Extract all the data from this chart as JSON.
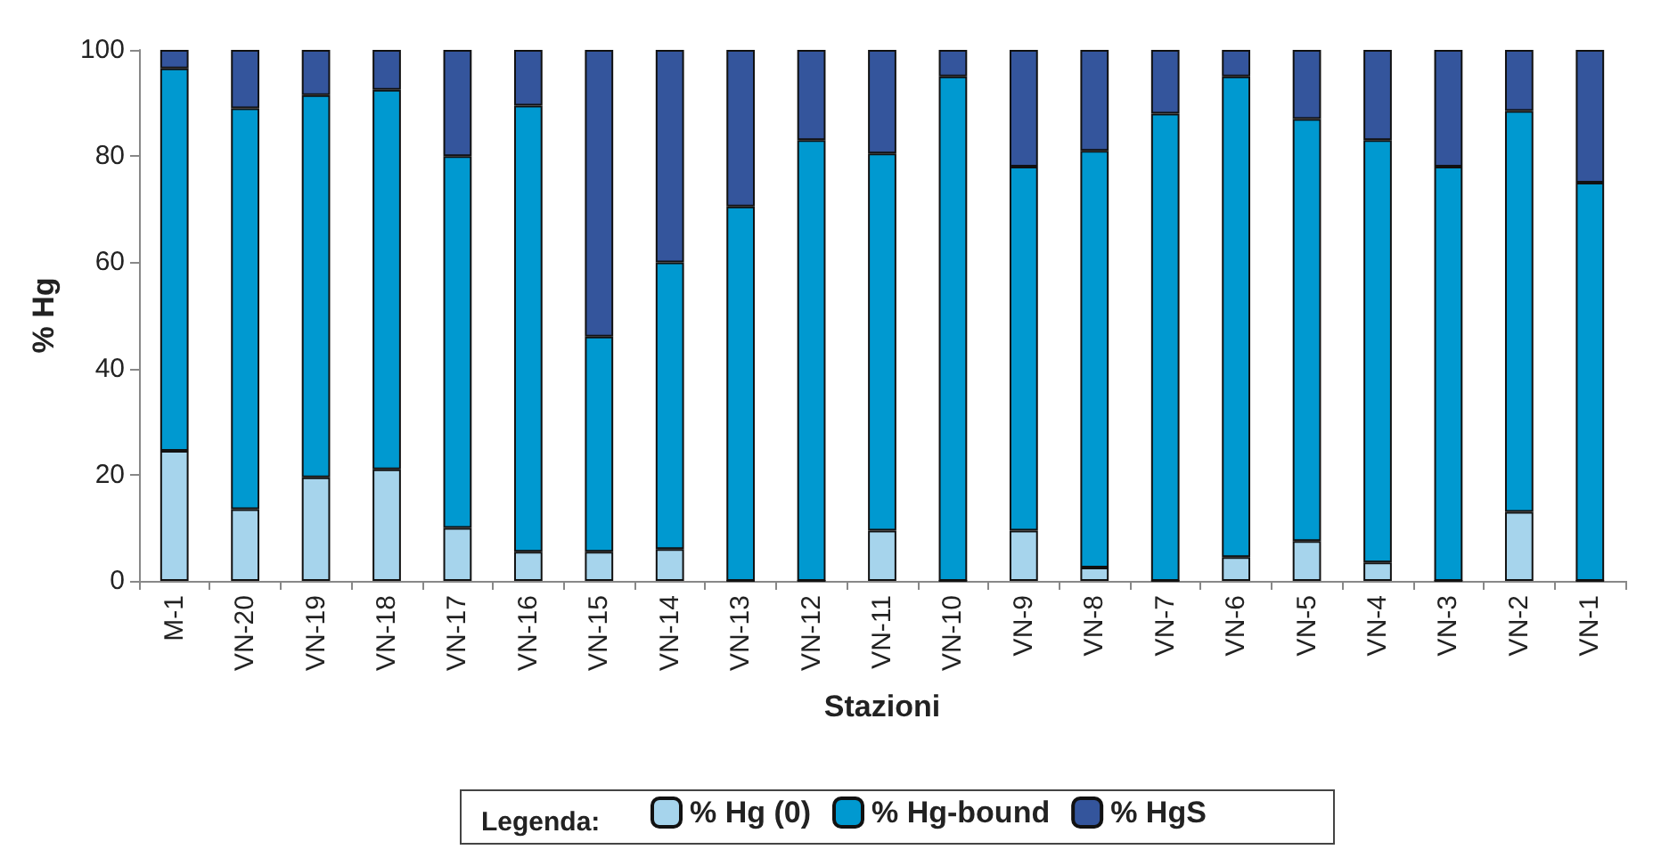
{
  "chart_data": {
    "type": "bar",
    "stacked": true,
    "xlabel": "Stazioni",
    "ylabel": "% Hg",
    "legend_title": "Legenda:",
    "legend": "bottom",
    "categories": [
      "M-1",
      "VN-20",
      "VN-19",
      "VN-18",
      "VN-17",
      "VN-16",
      "VN-15",
      "VN-14",
      "VN-13",
      "VN-12",
      "VN-11",
      "VN-10",
      "VN-9",
      "VN-8",
      "VN-7",
      "VN-6",
      "VN-5",
      "VN-4",
      "VN-3",
      "VN-2",
      "VN-1"
    ],
    "series": [
      {
        "name": "% Hg (0)",
        "color": "#a6d4ec",
        "values": [
          24.5,
          13.5,
          19.5,
          21,
          10,
          5.5,
          5.5,
          6,
          0,
          0,
          9.5,
          0,
          9.5,
          2.5,
          0,
          4.5,
          7.5,
          3.5,
          0,
          13,
          0
        ]
      },
      {
        "name": "% Hg-bound",
        "color": "#0099d0",
        "values": [
          72,
          75.5,
          72,
          71.5,
          70,
          84,
          40.5,
          54,
          70.5,
          83,
          71,
          95,
          68.5,
          78.5,
          88,
          90.5,
          79.5,
          79.5,
          78,
          75.5,
          75
        ]
      },
      {
        "name": "% HgS",
        "color": "#34559c",
        "values": [
          3.5,
          11,
          8.5,
          7.5,
          20,
          10.5,
          54,
          40,
          29.5,
          17,
          19.5,
          5,
          22,
          19,
          12,
          5,
          13,
          17,
          22,
          11.5,
          25
        ]
      }
    ],
    "ylim": [
      0,
      100
    ],
    "yticks": [
      0,
      20,
      40,
      60,
      80,
      100
    ],
    "grid": false
  }
}
